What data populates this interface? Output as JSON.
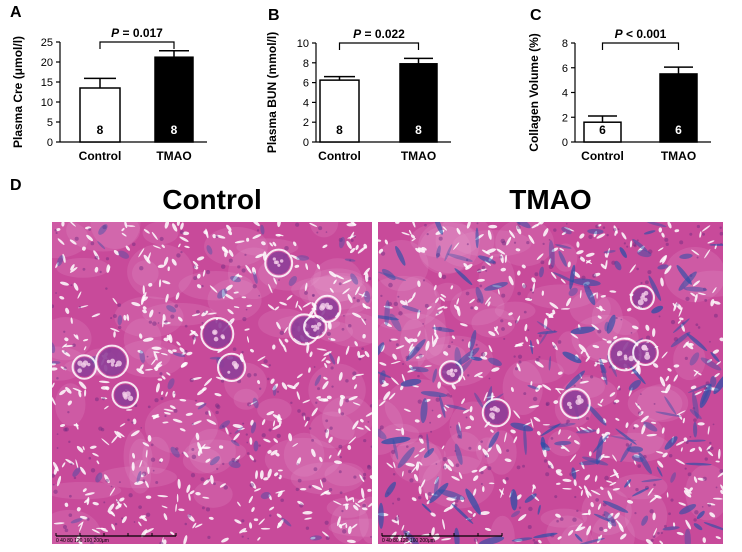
{
  "panels": {
    "A": "A",
    "B": "B",
    "C": "C",
    "D": "D"
  },
  "colors": {
    "control_fill": "#ffffff",
    "tmao_fill": "#000000",
    "stroke": "#000000",
    "tissue_pink": "#c84a9a",
    "tissue_light": "#e8a8d0",
    "fibrosis_blue": "#2b4fa8"
  },
  "chart_data": [
    {
      "type": "bar",
      "panel": "A",
      "ylabel": "Plasma Cre (μmol/l)",
      "ylim": [
        0,
        25
      ],
      "yticks": [
        0,
        5,
        10,
        15,
        20,
        25
      ],
      "categories": [
        "Control",
        "TMAO"
      ],
      "values": [
        13.5,
        21.2
      ],
      "errors": [
        2.4,
        1.6
      ],
      "n_labels": [
        "8",
        "8"
      ],
      "pvalue_text": "P = 0.017",
      "p_italic": "P",
      "p_rest": " = 0.017"
    },
    {
      "type": "bar",
      "panel": "B",
      "ylabel": "Plasma BUN (mmol/l)",
      "ylim": [
        0,
        10
      ],
      "yticks": [
        0,
        2,
        4,
        6,
        8,
        10
      ],
      "categories": [
        "Control",
        "TMAO"
      ],
      "values": [
        6.25,
        7.9
      ],
      "errors": [
        0.35,
        0.55
      ],
      "n_labels": [
        "8",
        "8"
      ],
      "pvalue_text": "P = 0.022",
      "p_italic": "P",
      "p_rest": " = 0.022"
    },
    {
      "type": "bar",
      "panel": "C",
      "ylabel": "Collagen Volume (%)",
      "ylim": [
        0,
        8
      ],
      "yticks": [
        0,
        2,
        4,
        6,
        8
      ],
      "categories": [
        "Control",
        "TMAO"
      ],
      "values": [
        1.6,
        5.5
      ],
      "errors": [
        0.5,
        0.55
      ],
      "n_labels": [
        "6",
        "6"
      ],
      "pvalue_text": "P < 0.001",
      "p_italic": "P",
      "p_rest": " < 0.001"
    }
  ],
  "micrographs": [
    {
      "title": "Control",
      "scalebar": "0 40 80 120 160 200μm",
      "fibrosis": 0.15
    },
    {
      "title": "TMAO",
      "scalebar": "0 40 80 120 160 200μm",
      "fibrosis": 1.0
    }
  ]
}
